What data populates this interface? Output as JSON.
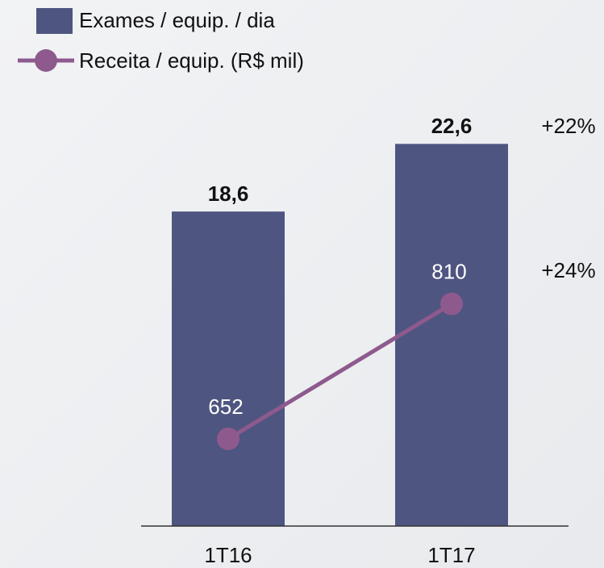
{
  "chart_data": {
    "type": "bar_line",
    "categories": [
      "1T16",
      "1T17"
    ],
    "series": [
      {
        "name": "Exames / equip. / dia",
        "color": "#4e5580",
        "values": [
          18.6,
          22.6
        ],
        "value_labels": [
          "18,6",
          "22,6"
        ]
      },
      {
        "name": "Receita / equip. (R$ mil)",
        "color": "#8e5a8e",
        "values": [
          652,
          810
        ],
        "axis": "y2"
      }
    ],
    "ylim": [
      0,
      24
    ],
    "y2lim": [
      550,
      1025
    ],
    "annotations": [
      "+22%",
      "+24%"
    ]
  }
}
